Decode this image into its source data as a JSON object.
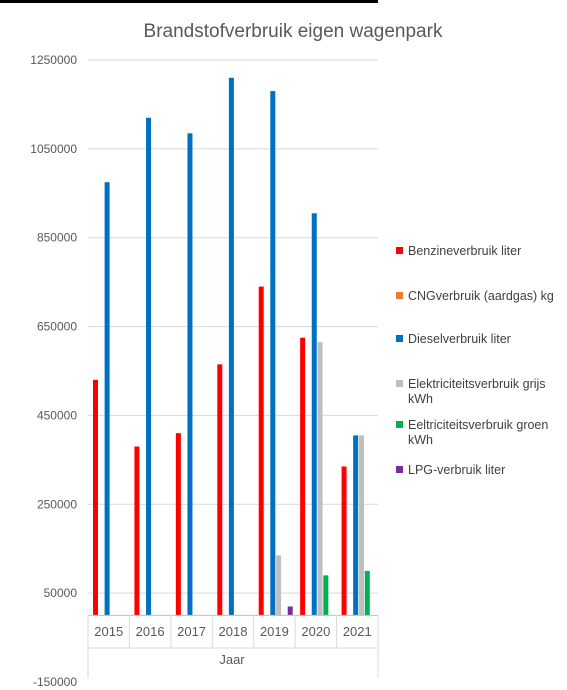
{
  "chart_data": {
    "type": "bar",
    "title": "Brandstofverbruik eigen wagenpark",
    "xlabel": "Jaar",
    "ylabel": "",
    "ylim": [
      -150000,
      1250000
    ],
    "yticks": [
      1250000,
      1050000,
      850000,
      650000,
      450000,
      250000,
      50000,
      -150000
    ],
    "ytick_labels": [
      "1250000",
      "1050000",
      "850000",
      "650000",
      "450000",
      "250000",
      "50000",
      "-150000"
    ],
    "categories": [
      "2015",
      "2016",
      "2017",
      "2018",
      "2019",
      "2020",
      "2021"
    ],
    "legend_position": "right",
    "grid": true,
    "series": [
      {
        "name": "Benzineverbruik liter",
        "color": "#ff0000",
        "values": [
          530000,
          380000,
          410000,
          565000,
          740000,
          625000,
          335000
        ]
      },
      {
        "name": "CNGverbruik (aardgas) kg",
        "color": "#ed7d31",
        "values": [
          0,
          0,
          0,
          0,
          0,
          0,
          0
        ]
      },
      {
        "name": "Dieselverbruik liter",
        "color": "#0070c0",
        "values": [
          975000,
          1120000,
          1085000,
          1210000,
          1180000,
          905000,
          405000
        ]
      },
      {
        "name": "Elektriciteitsverbruik grijs kWh",
        "color": "#bfbfbf",
        "values": [
          0,
          0,
          0,
          0,
          135000,
          615000,
          405000
        ]
      },
      {
        "name": "Eeltriciteitsverbruik groen kWh",
        "color": "#00b050",
        "values": [
          0,
          0,
          0,
          0,
          0,
          90000,
          100000
        ]
      },
      {
        "name": "LPG-verbruik liter",
        "color": "#7030a0",
        "values": [
          0,
          0,
          0,
          0,
          20000,
          0,
          0
        ]
      }
    ]
  },
  "legend_items": [
    {
      "label": "Benzineverbruik liter"
    },
    {
      "label": "CNGverbruik (aardgas) kg"
    },
    {
      "label": "Dieselverbruik liter"
    },
    {
      "label": "Elektriciteitsverbruik grijs kWh"
    },
    {
      "label": "Eeltriciteitsverbruik groen kWh"
    },
    {
      "label": "LPG-verbruik liter"
    }
  ]
}
